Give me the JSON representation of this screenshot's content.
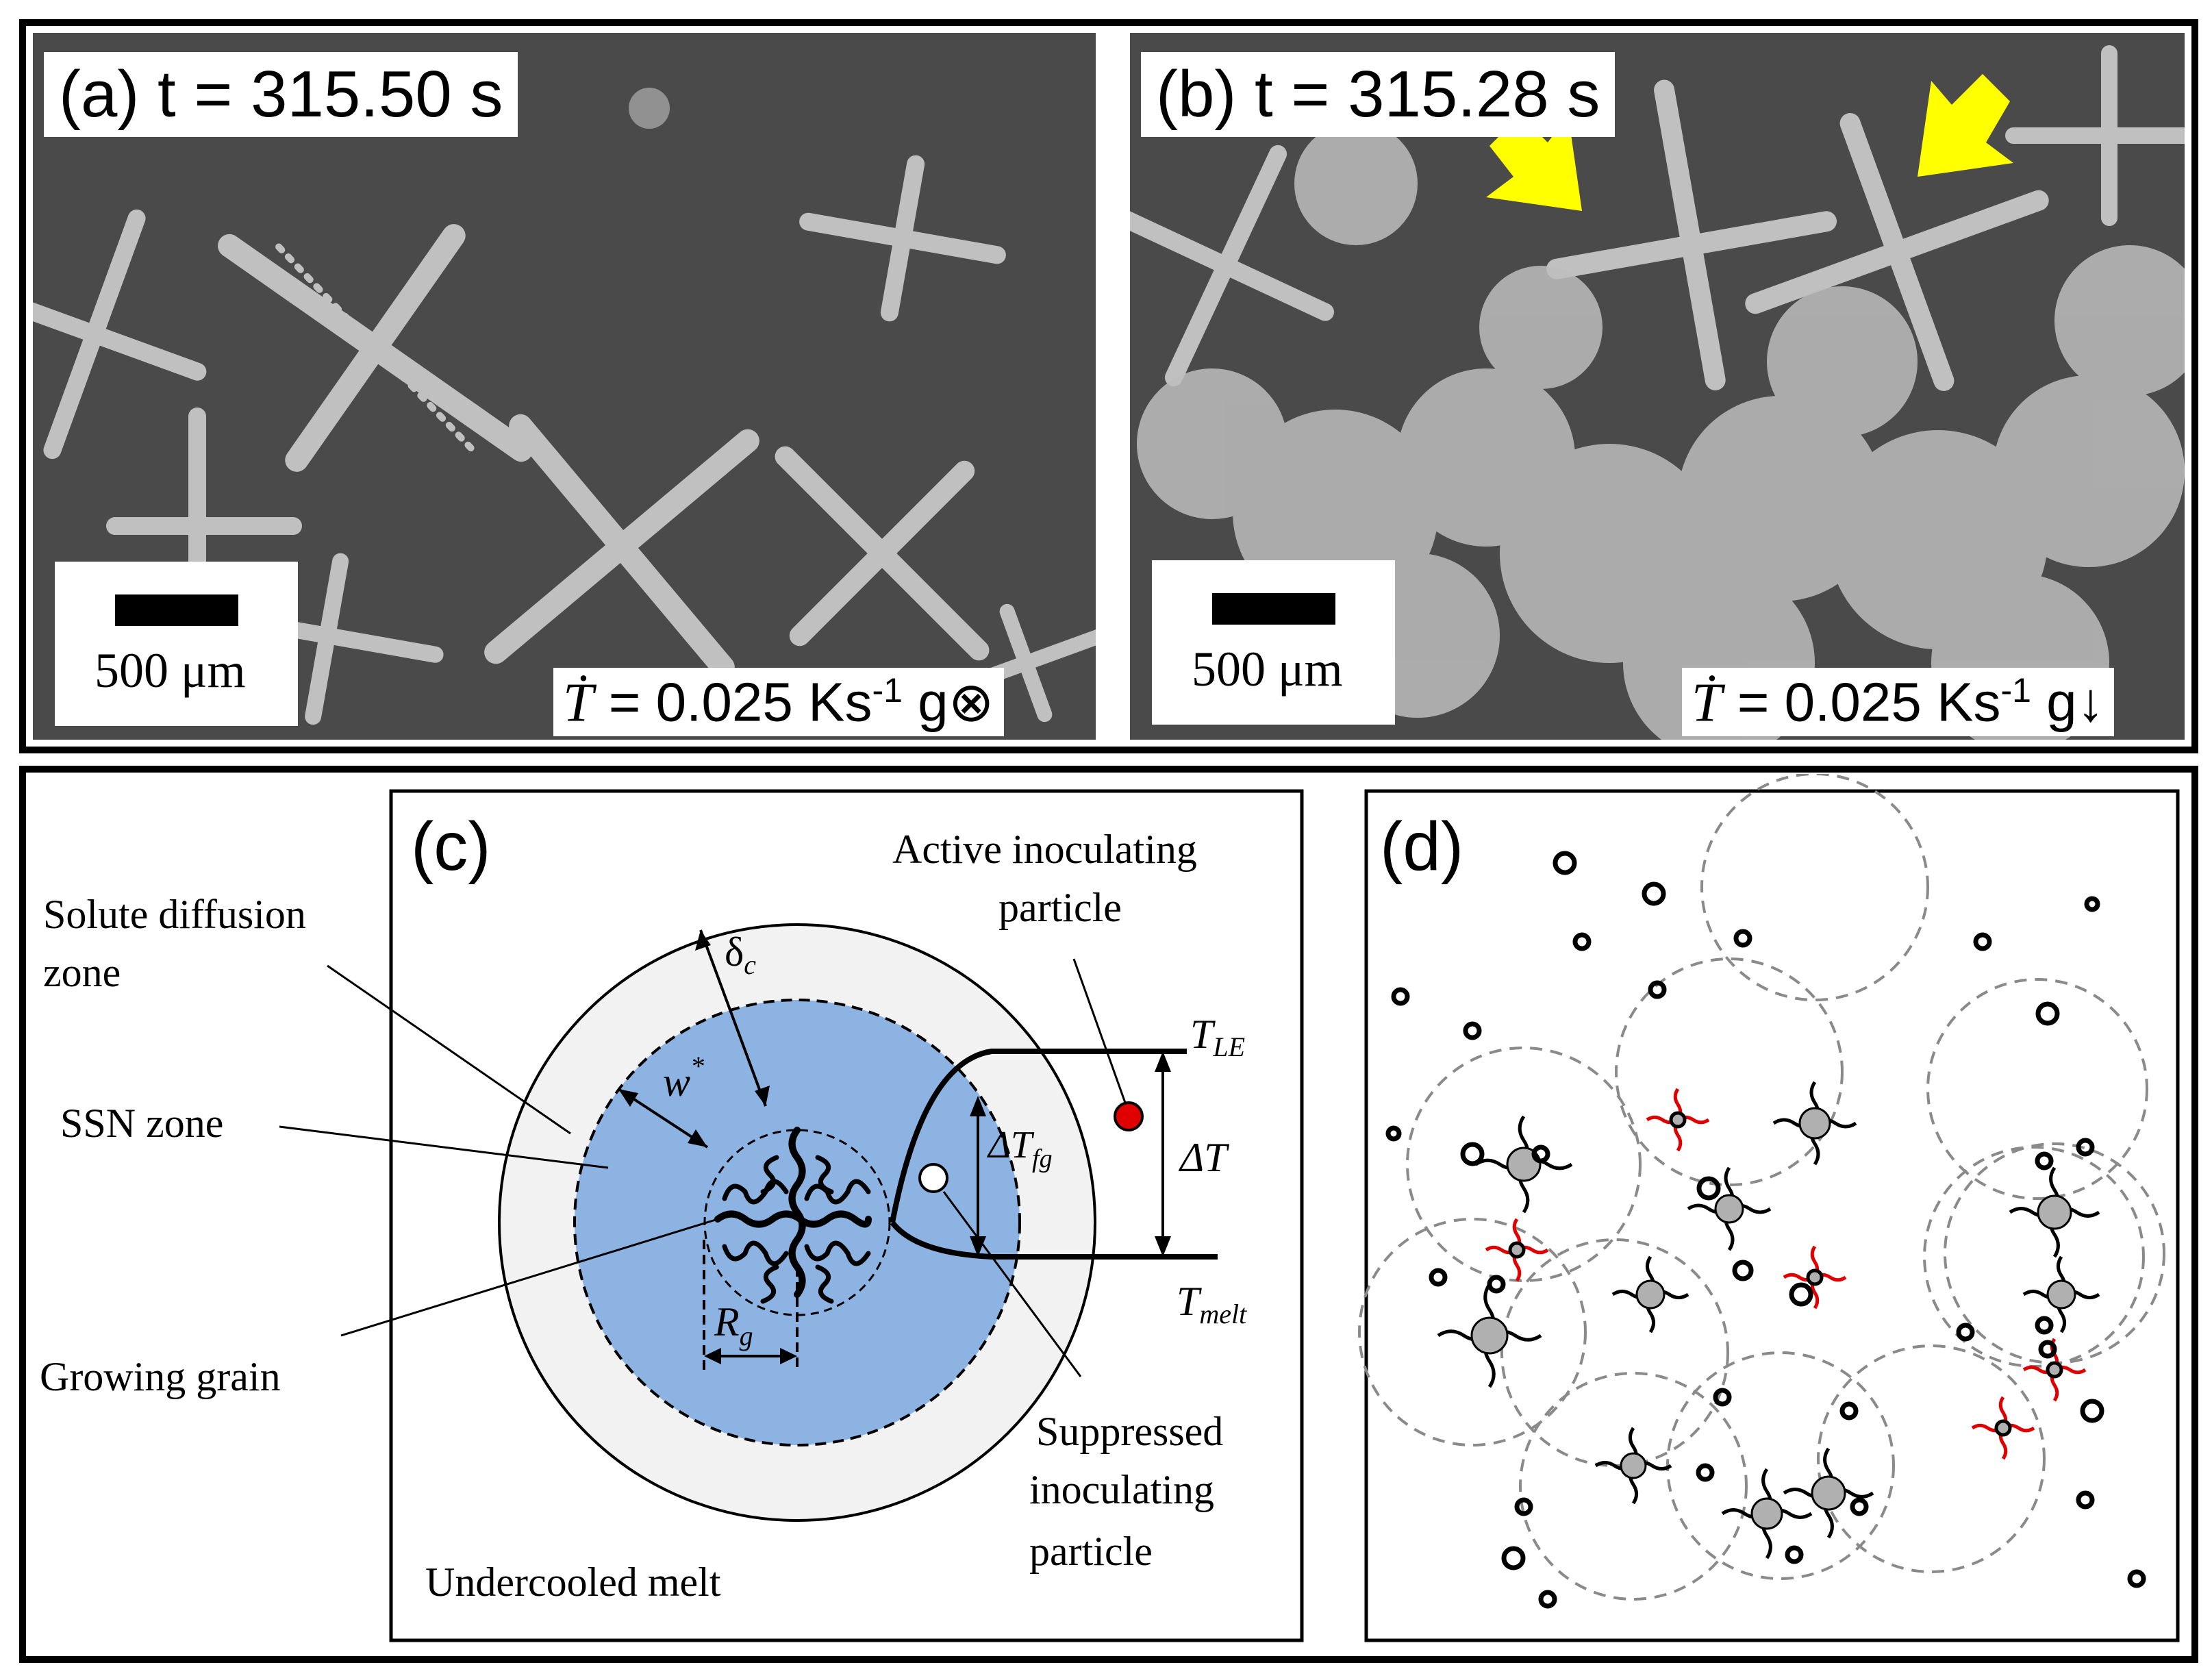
{
  "panel_a": {
    "label": "(a)  t = 315.50 s",
    "scale_text": "500 μm",
    "rate_symbol": "Ṫ",
    "rate_value": " = 0.025 Ks",
    "rate_exp": "-1",
    "rate_gravity": " g⊗"
  },
  "panel_b": {
    "label": "(b)  t = 315.28 s",
    "scale_text": "500 μm",
    "rate_symbol": "Ṫ",
    "rate_value": " = 0.025 Ks",
    "rate_exp": "-1",
    "rate_gravity": " g↓",
    "arrow_color": "#ffff00"
  },
  "panel_c": {
    "label": "(c)",
    "solute_zone_line1": "Solute  diffusion",
    "solute_zone_line2": "zone",
    "ssn_zone": "SSN zone",
    "growing_grain": "Growing grain",
    "undercooled_melt": "Undercooled melt",
    "active_line1": "Active inoculating",
    "active_line2": "particle",
    "suppressed_line1": "Suppressed",
    "suppressed_line2": "inoculating",
    "suppressed_line3": "particle",
    "delta_c": "δ",
    "delta_c_sub": "c",
    "w_star": "w",
    "w_star_sup": "*",
    "r_g": "R",
    "r_g_sub": "g",
    "t_le": "T",
    "t_le_sub": "LE",
    "t_melt": "T",
    "t_melt_sub": "melt",
    "delta_t_fg": "ΔT",
    "delta_t_fg_sub": "fg",
    "delta_t": "ΔT",
    "ssn_color": "#8db3e2",
    "solute_color": "#f2f2f2",
    "active_color": "#e00000"
  },
  "panel_d": {
    "label": "(d)",
    "inactive_color": "#e00000"
  }
}
